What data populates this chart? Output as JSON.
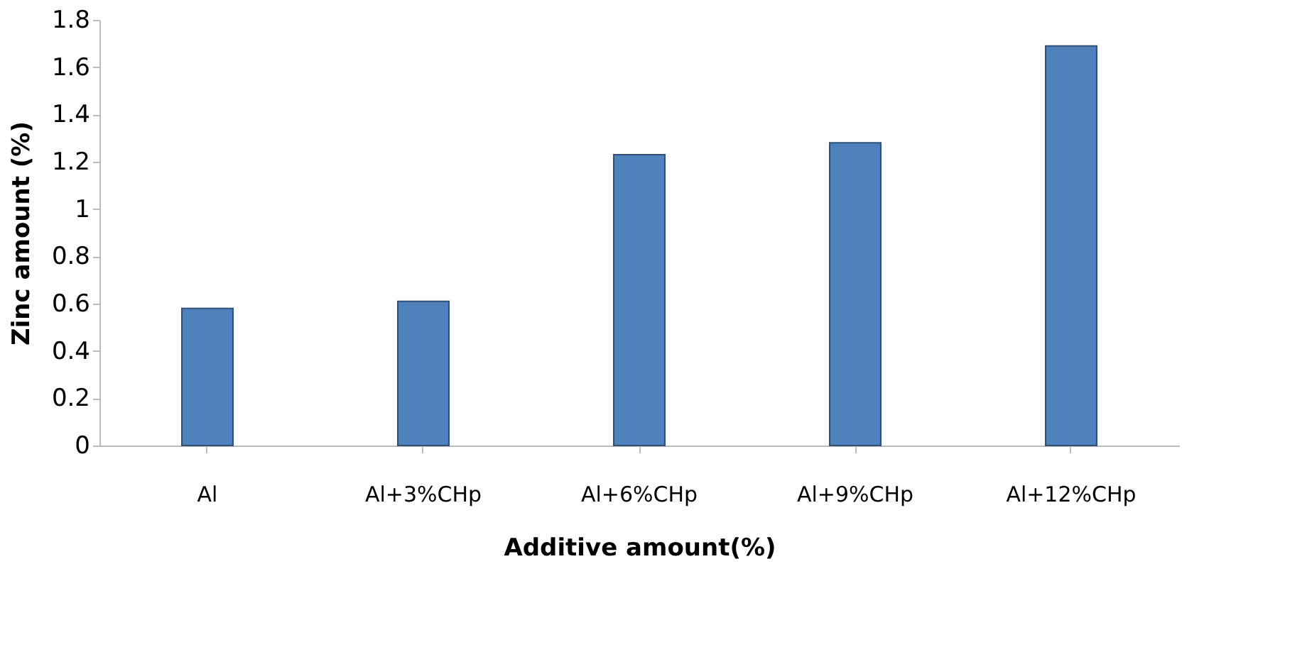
{
  "chart_data": {
    "type": "bar",
    "xlabel": "Additive amount(%)",
    "ylabel": "Zinc amount (%)",
    "categories": [
      "Al",
      "Al+3%CHp",
      "Al+6%CHp",
      "Al+9%CHp",
      "Al+12%CHp"
    ],
    "values": [
      0.58,
      0.61,
      1.23,
      1.28,
      1.69
    ],
    "color": "#4f81bd",
    "ylim": [
      0,
      1.8
    ],
    "yticks": [
      0,
      0.2,
      0.4,
      0.6,
      0.8,
      1,
      1.2,
      1.4,
      1.6,
      1.8
    ],
    "grid": false
  }
}
